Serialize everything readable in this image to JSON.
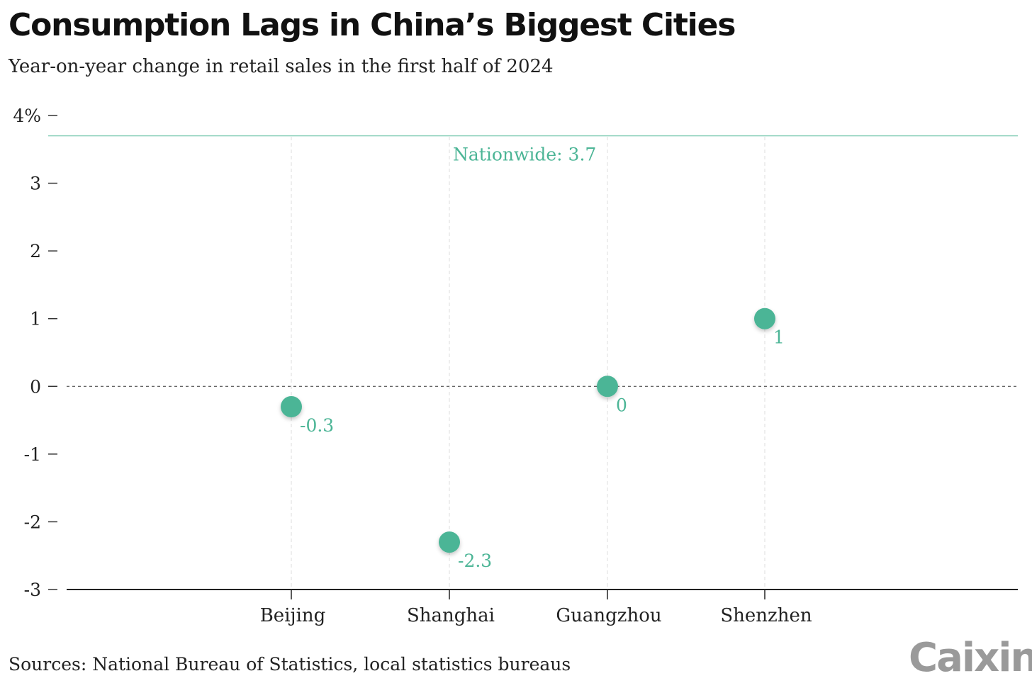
{
  "title": "Consumption Lags in China’s Biggest Cities",
  "subtitle": "Year-on-year change in retail sales in the first half of 2024",
  "source": "Sources: National Bureau of Statistics, local statistics bureaus",
  "logo": "Caixin",
  "colors": {
    "accent": "#4cb596",
    "reference_line": "#8fd1bd",
    "axis": "#222222",
    "grid": "#dddddd"
  },
  "chart_data": {
    "type": "scatter",
    "categories": [
      "Beijing",
      "Shanghai",
      "Guangzhou",
      "Shenzhen"
    ],
    "values": [
      -0.3,
      -2.3,
      0,
      1
    ],
    "value_labels": [
      "-0.3",
      "-2.3",
      "0",
      "1"
    ],
    "ylim": [
      -3,
      4
    ],
    "yticks": [
      -3,
      -2,
      -1,
      0,
      1,
      2,
      3,
      4
    ],
    "ytick_labels": [
      "-3",
      "-2",
      "-1",
      "0",
      "1",
      "2",
      "3",
      "4%"
    ],
    "reference": {
      "value": 3.7,
      "label": "Nationwide: 3.7"
    },
    "zero_line": "dashed",
    "grid": "vertical-dashed"
  }
}
